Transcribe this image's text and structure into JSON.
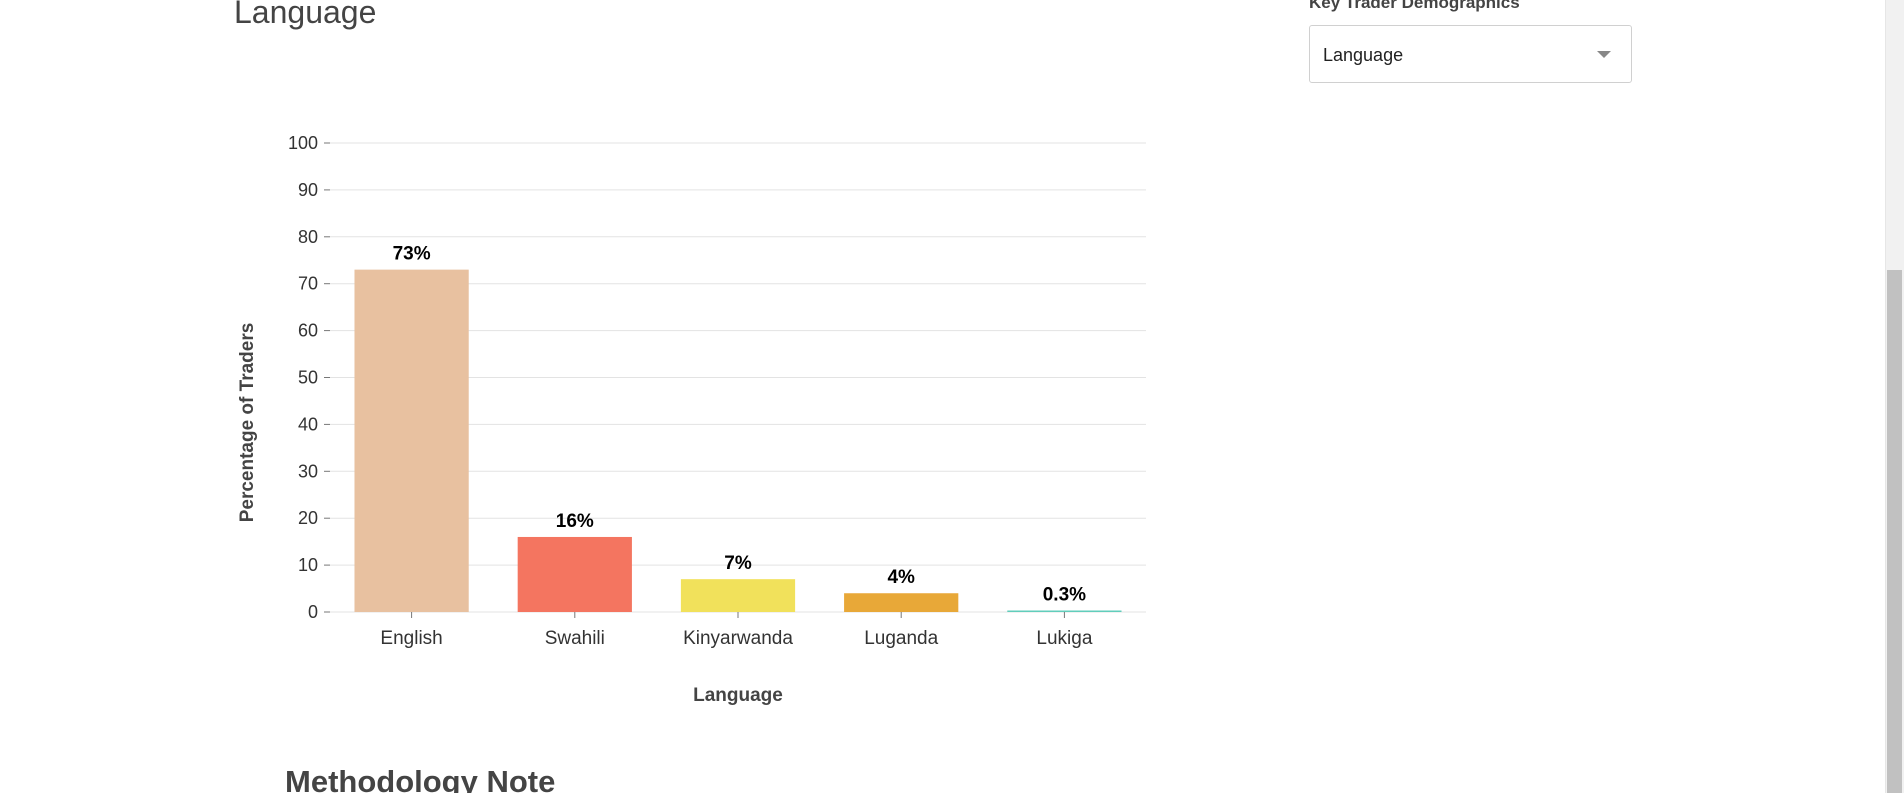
{
  "page": {
    "title": "Language",
    "methodology_heading": "Methodology Note"
  },
  "filter": {
    "label": "Key Trader Demographics",
    "selected": "Language"
  },
  "colors": {
    "grid": "#e3e3e3",
    "axis_text": "#333333",
    "label_text": "#000000"
  },
  "chart_data": {
    "type": "bar",
    "categories": [
      "English",
      "Swahili",
      "Kinyarwanda",
      "Luganda",
      "Lukiga"
    ],
    "values": [
      73,
      16,
      7,
      4,
      0.3
    ],
    "data_labels": [
      "73%",
      "16%",
      "7%",
      "4%",
      "0.3%"
    ],
    "colors": [
      "#e8c1a0",
      "#f47560",
      "#f1e15b",
      "#e8a838",
      "#61cdbb"
    ],
    "xlabel": "Language",
    "ylabel": "Percentage of Traders",
    "ylim": [
      0,
      100
    ],
    "yticks": [
      0,
      10,
      20,
      30,
      40,
      50,
      60,
      70,
      80,
      90,
      100
    ],
    "grid": true
  }
}
